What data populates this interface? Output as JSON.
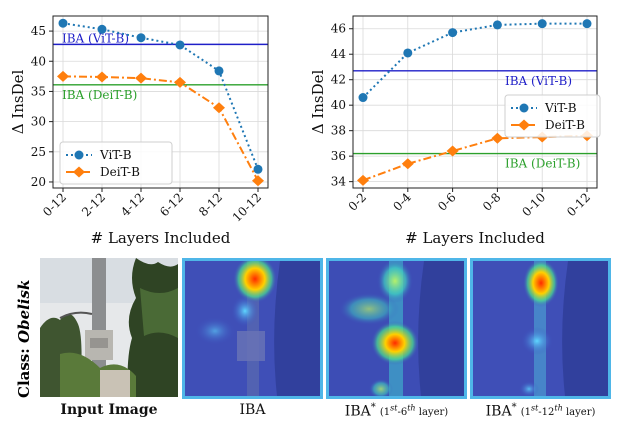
{
  "colors": {
    "vit": "#1f77b4",
    "deit": "#ff7f0e",
    "iba_vit": "#1f1fc8",
    "iba_deit": "#2ca02c",
    "frame": "#4fb6e8"
  },
  "chart_data": [
    {
      "type": "line",
      "xlabel": "# Layers Included",
      "ylabel": "Δ InsDel",
      "categories": [
        "0-12",
        "2-12",
        "4-12",
        "6-12",
        "8-12",
        "10-12"
      ],
      "ylim": [
        19,
        47.5
      ],
      "yticks": [
        20,
        25,
        30,
        35,
        40,
        45
      ],
      "grid": true,
      "legend_position": "bottom-left",
      "series": [
        {
          "name": "ViT-B",
          "values": [
            46.3,
            45.3,
            43.9,
            42.7,
            38.4,
            22.1
          ]
        },
        {
          "name": "DeiT-B",
          "values": [
            37.5,
            37.4,
            37.2,
            36.5,
            32.3,
            20.2
          ]
        }
      ],
      "reference_lines": [
        {
          "label": "IBA (ViT-B)",
          "value": 42.8
        },
        {
          "label": "IBA (DeiT-B)",
          "value": 36.1
        }
      ]
    },
    {
      "type": "line",
      "xlabel": "# Layers Included",
      "ylabel": "Δ InsDel",
      "categories": [
        "0-2",
        "0-4",
        "0-6",
        "0-8",
        "0-10",
        "0-12"
      ],
      "ylim": [
        33.5,
        47
      ],
      "yticks": [
        34,
        36,
        38,
        40,
        42,
        44,
        46
      ],
      "grid": true,
      "legend_position": "right",
      "series": [
        {
          "name": "ViT-B",
          "values": [
            40.6,
            44.1,
            45.7,
            46.3,
            46.4,
            46.4
          ]
        },
        {
          "name": "DeiT-B",
          "values": [
            34.1,
            35.4,
            36.4,
            37.4,
            37.5,
            37.6
          ]
        }
      ],
      "reference_lines": [
        {
          "label": "IBA (ViT-B)",
          "value": 42.7
        },
        {
          "label": "IBA (DeiT-B)",
          "value": 36.2
        }
      ]
    }
  ],
  "figure": {
    "class_prefix": "Class",
    "class_separator": ": ",
    "class_name": "Obelisk",
    "captions": {
      "input": "Input Image",
      "iba": "IBA",
      "iba_star_1": {
        "main": "IBA",
        "star": "*",
        "open": "(1",
        "s1": "st",
        "dash": "-6",
        "s2": "th",
        "close": " layer)"
      },
      "iba_star_2": {
        "main": "IBA",
        "star": "*",
        "open": "(1",
        "s1": "st",
        "dash": "-12",
        "s2": "th",
        "close": " layer)"
      }
    }
  }
}
